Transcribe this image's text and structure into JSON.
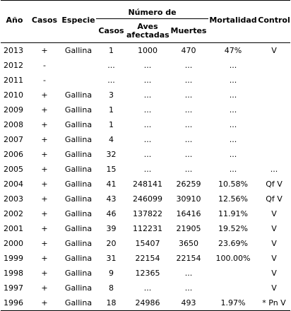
{
  "headers": {
    "ano": "Año",
    "casos": "Casos",
    "especie": "Especie",
    "group": "Número de",
    "num_casos": "Casos",
    "aves_line1": "Aves",
    "aves_line2": "afectadas",
    "muertes": "Muertes",
    "mortalidad": "Mortalidad",
    "control": "Control"
  },
  "rows": [
    {
      "ano": "2013",
      "casos": "+",
      "especie": "Gallina",
      "num": "1",
      "aves": "1000",
      "muertes": "470",
      "mort": "47%",
      "control": "V"
    },
    {
      "ano": "2012",
      "casos": "-",
      "especie": "",
      "num": "...",
      "aves": "...",
      "muertes": "...",
      "mort": "...",
      "control": ""
    },
    {
      "ano": "2011",
      "casos": "-",
      "especie": "",
      "num": "...",
      "aves": "...",
      "muertes": "...",
      "mort": "...",
      "control": ""
    },
    {
      "ano": "2010",
      "casos": "+",
      "especie": "Gallina",
      "num": "3",
      "aves": "...",
      "muertes": "...",
      "mort": "...",
      "control": ""
    },
    {
      "ano": "2009",
      "casos": "+",
      "especie": "Gallina",
      "num": "1",
      "aves": "...",
      "muertes": "...",
      "mort": "...",
      "control": ""
    },
    {
      "ano": "2008",
      "casos": "+",
      "especie": "Gallina",
      "num": "1",
      "aves": "...",
      "muertes": "...",
      "mort": "...",
      "control": ""
    },
    {
      "ano": "2007",
      "casos": "+",
      "especie": "Gallina",
      "num": "4",
      "aves": "...",
      "muertes": "...",
      "mort": "...",
      "control": ""
    },
    {
      "ano": "2006",
      "casos": "+",
      "especie": "Gallina",
      "num": "32",
      "aves": "...",
      "muertes": "...",
      "mort": "...",
      "control": ""
    },
    {
      "ano": "2005",
      "casos": "+",
      "especie": "Gallina",
      "num": "15",
      "aves": "...",
      "muertes": "...",
      "mort": "...",
      "control": "..."
    },
    {
      "ano": "2004",
      "casos": "+",
      "especie": "Gallina",
      "num": "41",
      "aves": "248141",
      "muertes": "26259",
      "mort": "10.58%",
      "control": "Qf V"
    },
    {
      "ano": "2003",
      "casos": "+",
      "especie": "Gallina",
      "num": "43",
      "aves": "246099",
      "muertes": "30910",
      "mort": "12.56%",
      "control": "Qf V"
    },
    {
      "ano": "2002",
      "casos": "+",
      "especie": "Gallina",
      "num": "46",
      "aves": "137822",
      "muertes": "16416",
      "mort": "11.91%",
      "control": "V"
    },
    {
      "ano": "2001",
      "casos": "+",
      "especie": "Gallina",
      "num": "39",
      "aves": "112231",
      "muertes": "21905",
      "mort": "19.52%",
      "control": "V"
    },
    {
      "ano": "2000",
      "casos": "+",
      "especie": "Gallina",
      "num": "20",
      "aves": "15407",
      "muertes": "3650",
      "mort": "23.69%",
      "control": "V"
    },
    {
      "ano": "1999",
      "casos": "+",
      "especie": "Gallina",
      "num": "31",
      "aves": "22154",
      "muertes": "22154",
      "mort": "100.00%",
      "control": "V"
    },
    {
      "ano": "1998",
      "casos": "+",
      "especie": "Gallina",
      "num": "9",
      "aves": "12365",
      "muertes": "...",
      "mort": "",
      "control": "V"
    },
    {
      "ano": "1997",
      "casos": "+",
      "especie": "Gallina",
      "num": "8",
      "aves": "...",
      "muertes": "...",
      "mort": "",
      "control": "V"
    },
    {
      "ano": "1996",
      "casos": "+",
      "especie": "Gallina",
      "num": "18",
      "aves": "24986",
      "muertes": "493",
      "mort": "1.97%",
      "control": "* Pn V"
    }
  ]
}
